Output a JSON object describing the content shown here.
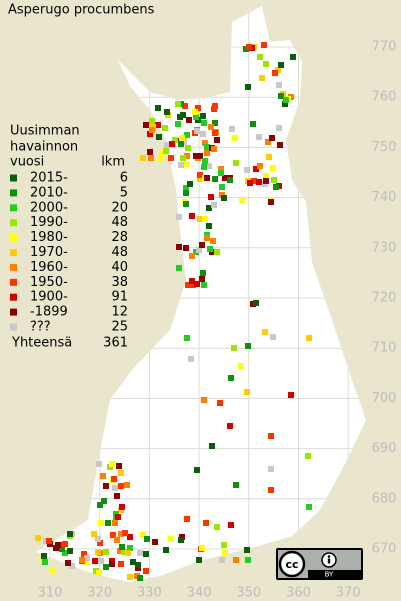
{
  "map": {
    "title": "Asperugo procumbens",
    "legend": {
      "heading": [
        "Uusimman",
        "havainnon"
      ],
      "period_header": "vuosi",
      "count_header": "lkm",
      "rows": [
        {
          "label": "2015-",
          "count": 6,
          "color": "#0b5e0b"
        },
        {
          "label": "2010-",
          "count": 5,
          "color": "#0f8f0f"
        },
        {
          "label": "2000-",
          "count": 20,
          "color": "#22cc22"
        },
        {
          "label": "1990-",
          "count": 48,
          "color": "#99e600"
        },
        {
          "label": "1980-",
          "count": 28,
          "color": "#ffff00"
        },
        {
          "label": "1970-",
          "count": 48,
          "color": "#ffcc00"
        },
        {
          "label": "1960-",
          "count": 40,
          "color": "#ff8000"
        },
        {
          "label": "1950-",
          "count": 38,
          "color": "#ff3300"
        },
        {
          "label": "1900-",
          "count": 91,
          "color": "#d40000"
        },
        {
          "label": "-1899",
          "count": 12,
          "color": "#8b0000"
        },
        {
          "label": "???",
          "count": 25,
          "color": "#c8c8c8"
        }
      ],
      "total_label": "Yhteensä",
      "total": 361
    },
    "xticks": [
      310,
      320,
      330,
      340,
      350,
      360,
      370
    ],
    "yticks": [
      670,
      680,
      690,
      700,
      710,
      720,
      730,
      740,
      750,
      760,
      770
    ],
    "license": "BY"
  }
}
